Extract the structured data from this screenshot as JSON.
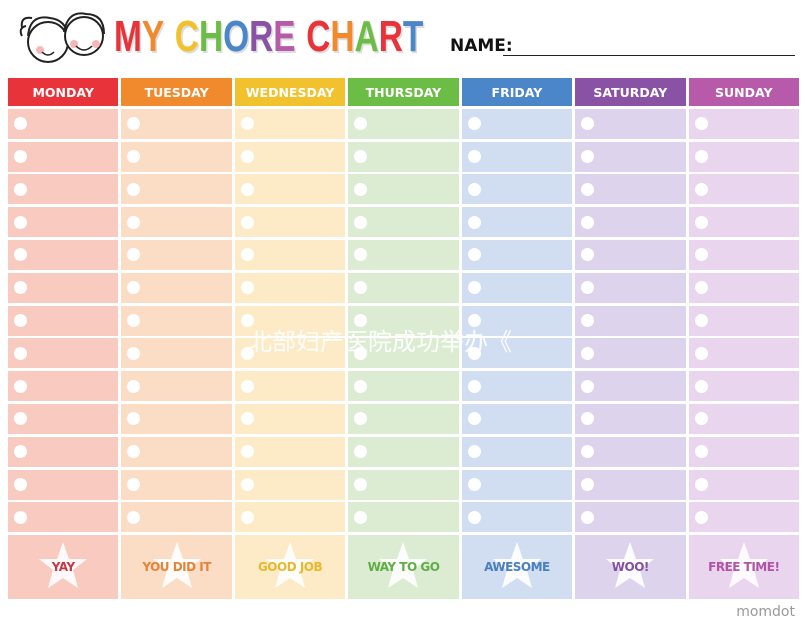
{
  "header": {
    "title_letters": [
      {
        "ch": "M",
        "color": "#e8333a"
      },
      {
        "ch": "Y",
        "color": "#f08a2c"
      },
      {
        "ch": " ",
        "color": "#000"
      },
      {
        "ch": "C",
        "color": "#f2c12e"
      },
      {
        "ch": "H",
        "color": "#6cbd45"
      },
      {
        "ch": "O",
        "color": "#4a86c8"
      },
      {
        "ch": "R",
        "color": "#8a52a5"
      },
      {
        "ch": "E",
        "color": "#b65aa9"
      },
      {
        "ch": " ",
        "color": "#000"
      },
      {
        "ch": "C",
        "color": "#e8333a"
      },
      {
        "ch": "H",
        "color": "#f08a2c"
      },
      {
        "ch": "A",
        "color": "#6cbd45"
      },
      {
        "ch": "R",
        "color": "#e8333a"
      },
      {
        "ch": "T",
        "color": "#4a86c8"
      }
    ],
    "name_label": "NAME:"
  },
  "days": [
    {
      "label": "MONDAY",
      "color": "#e8333a",
      "bg": "#f9cbc0",
      "reward": "YAY",
      "reward_color": "#c5384a"
    },
    {
      "label": "TUESDAY",
      "color": "#f08a2c",
      "bg": "#fbdcc4",
      "reward": "YOU DID IT",
      "reward_color": "#e2853a"
    },
    {
      "label": "WEDNESDAY",
      "color": "#f2c12e",
      "bg": "#fcebc6",
      "reward": "GOOD JOB",
      "reward_color": "#e6b92e"
    },
    {
      "label": "THURSDAY",
      "color": "#6cbd45",
      "bg": "#dcecd2",
      "reward": "WAY TO GO",
      "reward_color": "#5fae45"
    },
    {
      "label": "FRIDAY",
      "color": "#4a86c8",
      "bg": "#d1def1",
      "reward": "AWESOME",
      "reward_color": "#4a7fc0"
    },
    {
      "label": "SATURDAY",
      "color": "#8a52a5",
      "bg": "#ddd3ed",
      "reward": "WOO!",
      "reward_color": "#8450a0"
    },
    {
      "label": "SUNDAY",
      "color": "#b65aa9",
      "bg": "#ead5ee",
      "reward": "FREE TIME!",
      "reward_color": "#b055a5"
    }
  ],
  "watermark": "北部妇产医院成功举办《",
  "brand": "momdot"
}
